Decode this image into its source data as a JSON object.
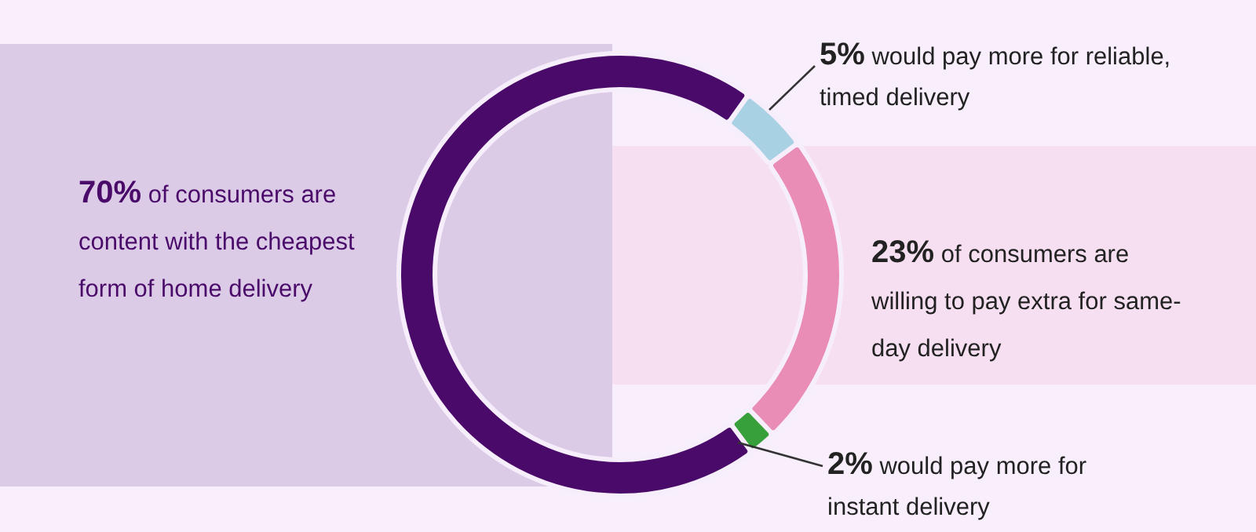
{
  "chart_data": {
    "type": "donut",
    "categories": [
      "would pay more for reliable, timed delivery",
      "of consumers are willing to pay extra for same-day delivery",
      "would pay more for instant delivery",
      "of consumers are content with the cheapest form of home delivery"
    ],
    "values": [
      5,
      23,
      2,
      70
    ],
    "value_labels": [
      "5%",
      "23%",
      "2%",
      "70%"
    ],
    "colors": [
      "#a9d1e4",
      "#e98cb6",
      "#38a03a",
      "#4a0a69"
    ],
    "legend": false
  }
}
